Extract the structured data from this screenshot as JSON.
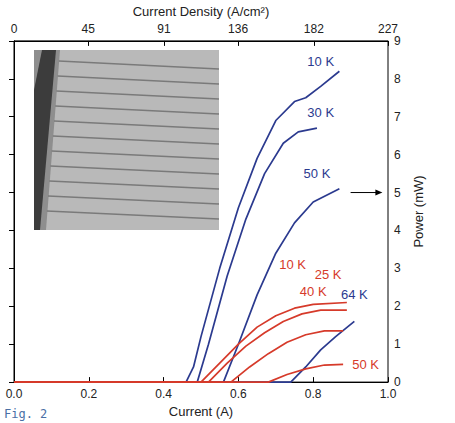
{
  "chart_data": {
    "type": "line",
    "x_label": "Current (A)",
    "x2_label": "Current Density (A/cm²)",
    "y_label": "Power (mW)",
    "annotations": [
      "Fig. 2"
    ],
    "xlim": [
      0,
      1
    ],
    "xticks": [
      {
        "value": 0,
        "label": "0.0"
      },
      {
        "value": 0.2,
        "label": "0.2"
      },
      {
        "value": 0.4,
        "label": "0.4"
      },
      {
        "value": 0.6,
        "label": "0.6"
      },
      {
        "value": 0.8,
        "label": "0.8"
      },
      {
        "value": 1,
        "label": "1.0"
      }
    ],
    "x2lim": [
      0,
      227
    ],
    "x2ticks": [
      0,
      45,
      91,
      136,
      182,
      227
    ],
    "ylim": [
      0,
      9
    ],
    "yticks": [
      0,
      1,
      2,
      3,
      4,
      5,
      6,
      7,
      8,
      9
    ],
    "grid": false,
    "marker": "none",
    "line_style": "solid",
    "series": [
      {
        "name": "10 K",
        "color": "#2b3a8f",
        "x": [
          0,
          0.46,
          0.48,
          0.5,
          0.55,
          0.6,
          0.65,
          0.7,
          0.75,
          0.78,
          0.82,
          0.87
        ],
        "values": [
          0,
          0,
          0.4,
          1.2,
          3.0,
          4.6,
          5.9,
          6.9,
          7.4,
          7.5,
          7.8,
          8.2
        ]
      },
      {
        "name": "30 K",
        "color": "#2b3a8f",
        "x": [
          0,
          0.49,
          0.52,
          0.57,
          0.62,
          0.67,
          0.72,
          0.76,
          0.81
        ],
        "values": [
          0,
          0,
          1.0,
          2.8,
          4.3,
          5.5,
          6.3,
          6.6,
          6.7
        ]
      },
      {
        "name": "50 K",
        "color": "#2b3a8f",
        "x": [
          0,
          0.56,
          0.6,
          0.65,
          0.7,
          0.75,
          0.8,
          0.87
        ],
        "values": [
          0,
          0,
          1.0,
          2.3,
          3.4,
          4.2,
          4.75,
          5.1
        ]
      },
      {
        "name": "64 K",
        "color": "#2b3a8f",
        "x": [
          0,
          0.74,
          0.78,
          0.82,
          0.86,
          0.91
        ],
        "values": [
          0,
          0,
          0.4,
          0.85,
          1.2,
          1.6
        ]
      },
      {
        "name": "10 K",
        "color": "#d63a2a",
        "x": [
          0,
          0.5,
          0.55,
          0.6,
          0.65,
          0.7,
          0.75,
          0.8,
          0.89
        ],
        "values": [
          0,
          0,
          0.5,
          1.0,
          1.45,
          1.75,
          1.95,
          2.05,
          2.1
        ]
      },
      {
        "name": "25 K",
        "color": "#d63a2a",
        "x": [
          0,
          0.52,
          0.57,
          0.62,
          0.67,
          0.72,
          0.77,
          0.82,
          0.89
        ],
        "values": [
          0,
          0,
          0.5,
          0.95,
          1.3,
          1.6,
          1.8,
          1.9,
          1.9
        ]
      },
      {
        "name": "40 K",
        "color": "#d63a2a",
        "x": [
          0,
          0.58,
          0.63,
          0.68,
          0.73,
          0.78,
          0.83,
          0.88
        ],
        "values": [
          0,
          0,
          0.4,
          0.75,
          1.05,
          1.25,
          1.35,
          1.35
        ]
      },
      {
        "name": "50 K",
        "color": "#d63a2a",
        "x": [
          0,
          0.68,
          0.73,
          0.78,
          0.83,
          0.88
        ],
        "values": [
          0,
          0,
          0.2,
          0.35,
          0.45,
          0.47
        ]
      }
    ]
  }
}
